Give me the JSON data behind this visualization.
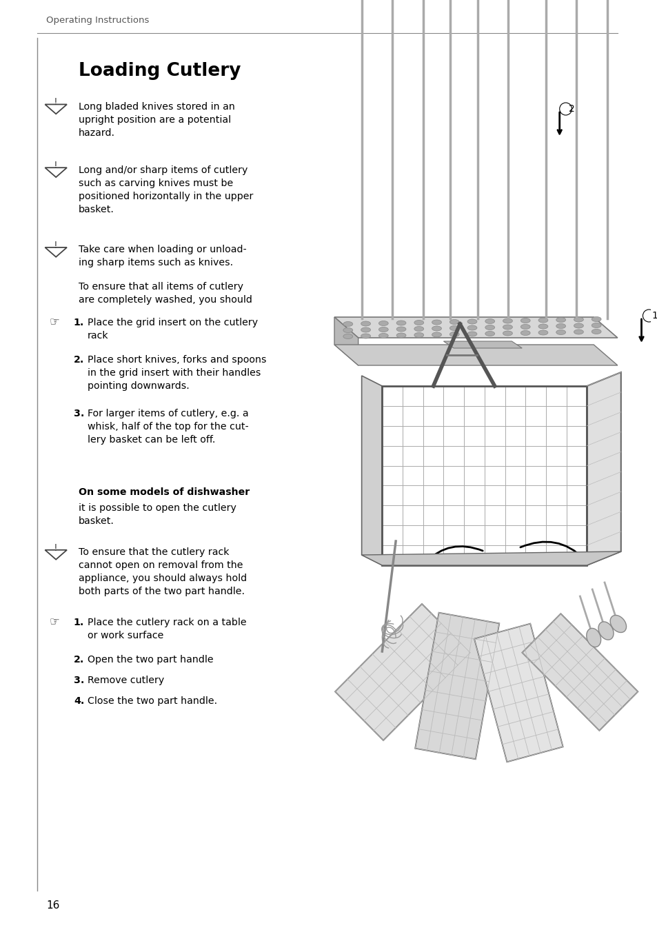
{
  "page_header": "Operating Instructions",
  "title": "Loading Cutlery",
  "bg_color": "#ffffff",
  "text_color": "#000000",
  "page_number": "16",
  "warnings": [
    "Long bladed knives stored in an\nupright position are a potential\nhazard.",
    "Long and/or sharp items of cutlery\nsuch as carving knives must be\npositioned horizontally in the upper\nbasket.",
    "Take care when loading or unload-\ning sharp items such as knives."
  ],
  "continuation_text": "To ensure that all items of cutlery\nare completely washed, you should",
  "steps1": [
    "Place the grid insert on the cutlery\nrack",
    "Place short knives, forks and spoons\nin the grid insert with their handles\npointing downwards.",
    "For larger items of cutlery, e.g. a\nwhisk, half of the top for the cut-\nlery basket can be left off."
  ],
  "section2_bold": "On some models of dishwasher",
  "section2_normal": "it is possible to open the cutlery\nbasket.",
  "warning4": "To ensure that the cutlery rack\ncannot open on removal from the\nappliance, you should always hold\nboth parts of the two part handle.",
  "steps2": [
    "Place the cutlery rack on a table\nor work surface",
    "Open the two part handle",
    "Remove cutlery",
    "Close the two part handle."
  ]
}
